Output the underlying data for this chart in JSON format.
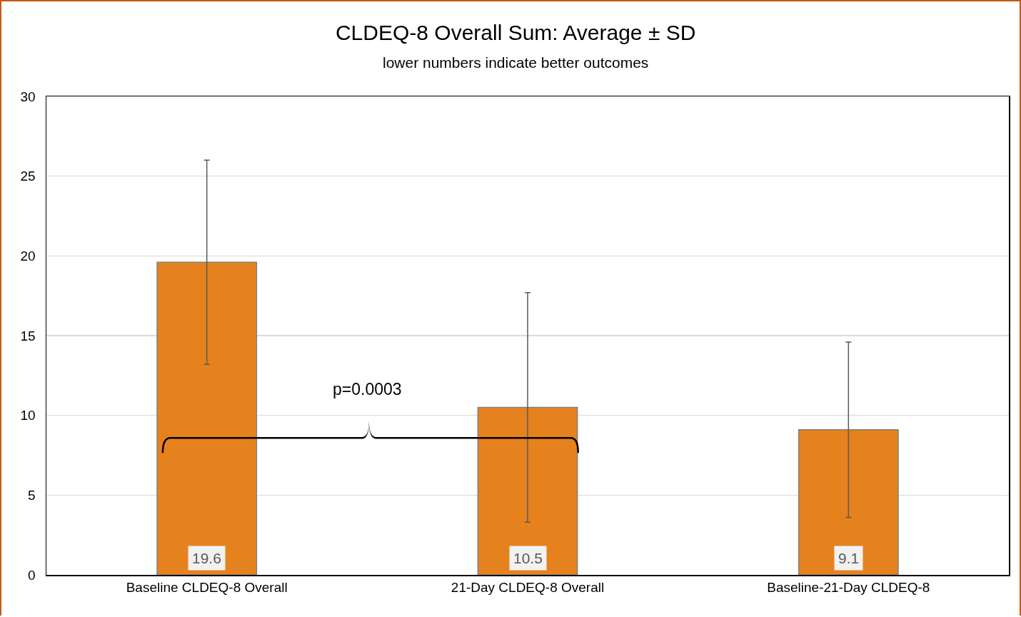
{
  "chart_data": {
    "type": "bar",
    "title": "CLDEQ-8 Overall Sum: Average ± SD",
    "subtitle": "lower numbers indicate better outcomes",
    "categories": [
      "Baseline CLDEQ-8 Overall",
      "21-Day CLDEQ-8 Overall",
      "Baseline-21-Day CLDEQ-8"
    ],
    "values": [
      19.6,
      10.5,
      9.1
    ],
    "color": "#e6821e",
    "errors": [
      6.4,
      7.2,
      5.5
    ],
    "data_labels": true,
    "annotations": [
      "p=0.0003"
    ],
    "ylim": [
      0,
      30
    ],
    "yticks": [
      0,
      5,
      10,
      15,
      20,
      25,
      30
    ],
    "grid": "y"
  }
}
